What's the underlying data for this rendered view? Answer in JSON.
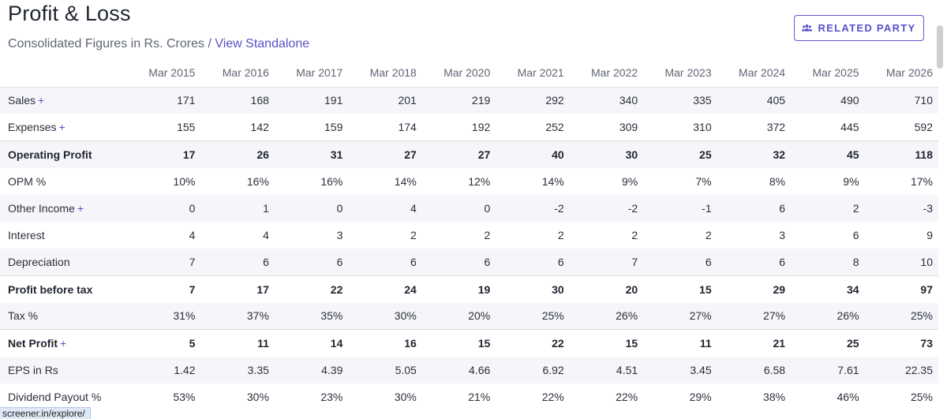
{
  "title": "Profit & Loss",
  "subtitle": {
    "text": "Consolidated Figures in Rs. Crores / ",
    "link": "View Standalone"
  },
  "related_button": {
    "label": "RELATED PARTY",
    "icon": "users-icon"
  },
  "columns": [
    "Mar 2015",
    "Mar 2016",
    "Mar 2017",
    "Mar 2018",
    "Mar 2020",
    "Mar 2021",
    "Mar 2022",
    "Mar 2023",
    "Mar 2024",
    "Mar 2025",
    "Mar 2026"
  ],
  "rows": [
    {
      "label": "Sales",
      "expand": "+",
      "values": [
        "171",
        "168",
        "191",
        "201",
        "219",
        "292",
        "340",
        "335",
        "405",
        "490",
        "710"
      ]
    },
    {
      "label": "Expenses",
      "expand": "+",
      "values": [
        "155",
        "142",
        "159",
        "174",
        "192",
        "252",
        "309",
        "310",
        "372",
        "445",
        "592"
      ]
    },
    {
      "label": "Operating Profit",
      "bold": true,
      "values": [
        "17",
        "26",
        "31",
        "27",
        "27",
        "40",
        "30",
        "25",
        "32",
        "45",
        "118"
      ]
    },
    {
      "label": "OPM %",
      "values": [
        "10%",
        "16%",
        "16%",
        "14%",
        "12%",
        "14%",
        "9%",
        "7%",
        "8%",
        "9%",
        "17%"
      ]
    },
    {
      "label": "Other Income",
      "expand": "+",
      "values": [
        "0",
        "1",
        "0",
        "4",
        "0",
        "-2",
        "-2",
        "-1",
        "6",
        "2",
        "-3"
      ]
    },
    {
      "label": "Interest",
      "values": [
        "4",
        "4",
        "3",
        "2",
        "2",
        "2",
        "2",
        "2",
        "3",
        "6",
        "9"
      ]
    },
    {
      "label": "Depreciation",
      "values": [
        "7",
        "6",
        "6",
        "6",
        "6",
        "6",
        "7",
        "6",
        "6",
        "8",
        "10"
      ]
    },
    {
      "label": "Profit before tax",
      "bold": true,
      "values": [
        "7",
        "17",
        "22",
        "24",
        "19",
        "30",
        "20",
        "15",
        "29",
        "34",
        "97"
      ]
    },
    {
      "label": "Tax %",
      "values": [
        "31%",
        "37%",
        "35%",
        "30%",
        "20%",
        "25%",
        "26%",
        "27%",
        "27%",
        "26%",
        "25%"
      ]
    },
    {
      "label": "Net Profit",
      "expand": "+",
      "bold": true,
      "values": [
        "5",
        "11",
        "14",
        "16",
        "15",
        "22",
        "15",
        "11",
        "21",
        "25",
        "73"
      ]
    },
    {
      "label": "EPS in Rs",
      "values": [
        "1.42",
        "3.35",
        "4.39",
        "5.05",
        "4.66",
        "6.92",
        "4.51",
        "3.45",
        "6.58",
        "7.61",
        "22.35"
      ]
    },
    {
      "label": "Dividend Payout %",
      "values": [
        "53%",
        "30%",
        "23%",
        "30%",
        "21%",
        "22%",
        "22%",
        "29%",
        "38%",
        "46%",
        "25%"
      ]
    }
  ],
  "status_bar": "screener.in/explore/",
  "colors": {
    "accent": "#5a50c8",
    "stripe": "#f6f6fa",
    "text": "#1f2430"
  }
}
